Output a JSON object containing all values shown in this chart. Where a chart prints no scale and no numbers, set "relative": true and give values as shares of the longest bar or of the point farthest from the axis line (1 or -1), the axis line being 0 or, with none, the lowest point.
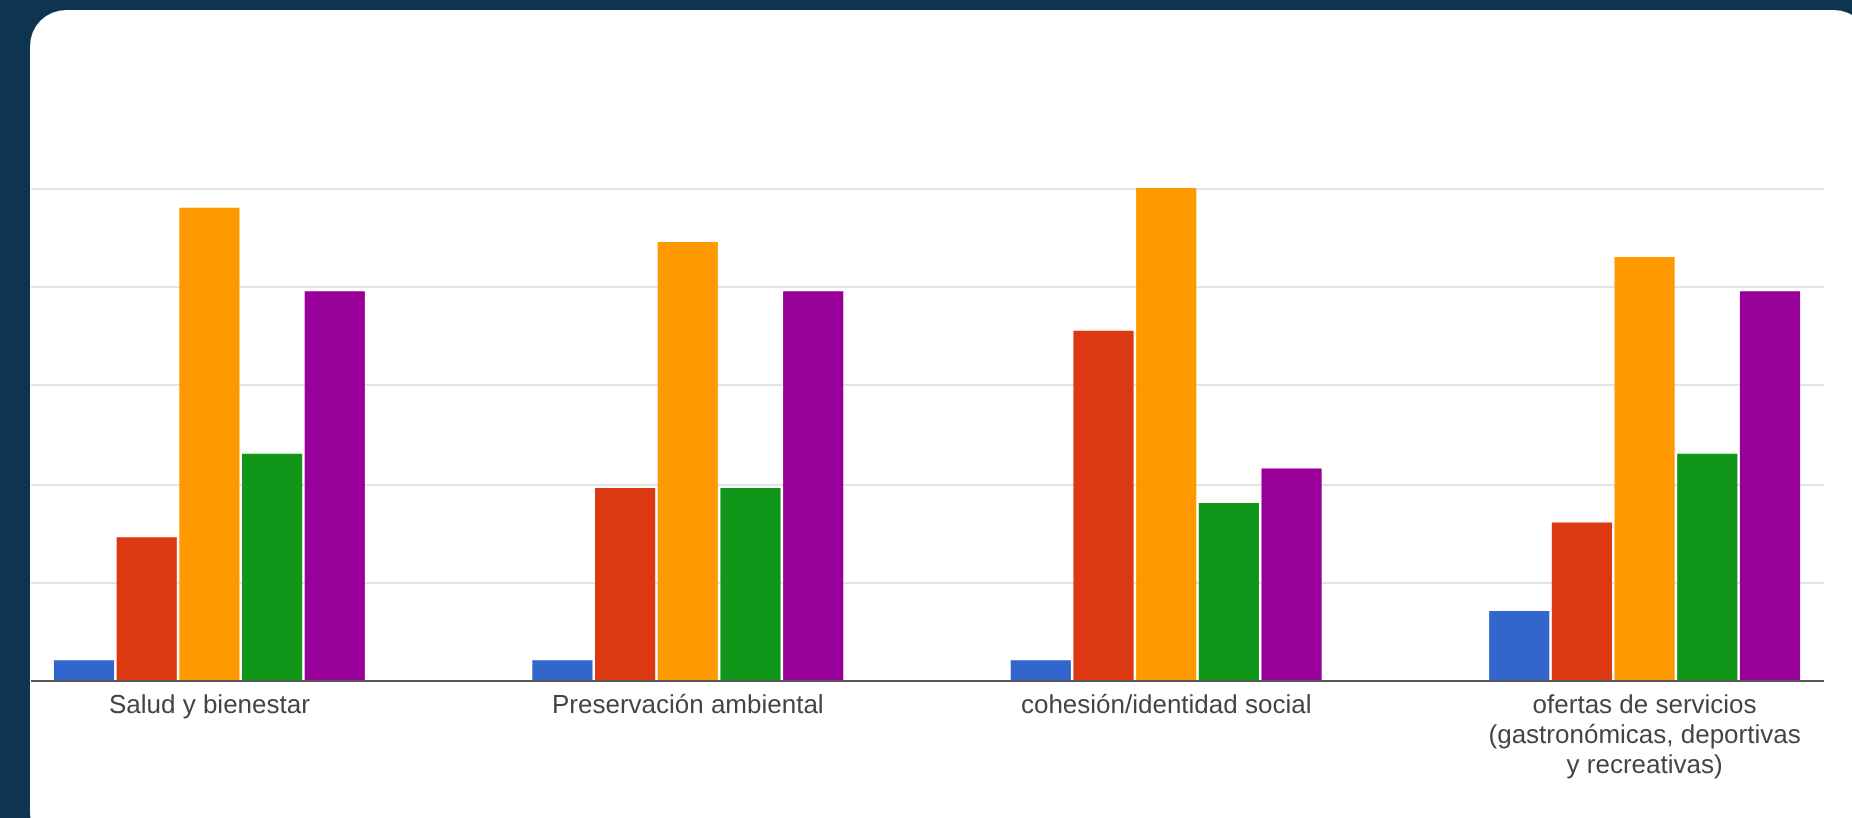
{
  "chart_data": {
    "type": "bar",
    "relative": true,
    "grid": "y",
    "legend": false,
    "categories": [
      "Salud y bienestar",
      "Preservación ambiental",
      "cohesión/identidad social",
      "ofertas de servicios (gastronómicas, deportivas y recreativas)"
    ],
    "series": [
      {
        "color": "#3366cc",
        "values": [
          0.04,
          0.04,
          0.04,
          0.14
        ]
      },
      {
        "color": "#dc3912",
        "values": [
          0.29,
          0.39,
          0.71,
          0.32
        ]
      },
      {
        "color": "#ff9900",
        "values": [
          0.96,
          0.89,
          1,
          0.86
        ]
      },
      {
        "color": "#109618",
        "values": [
          0.46,
          0.39,
          0.36,
          0.46
        ]
      },
      {
        "color": "#990099",
        "values": [
          0.79,
          0.79,
          0.43,
          0.79
        ]
      }
    ]
  }
}
